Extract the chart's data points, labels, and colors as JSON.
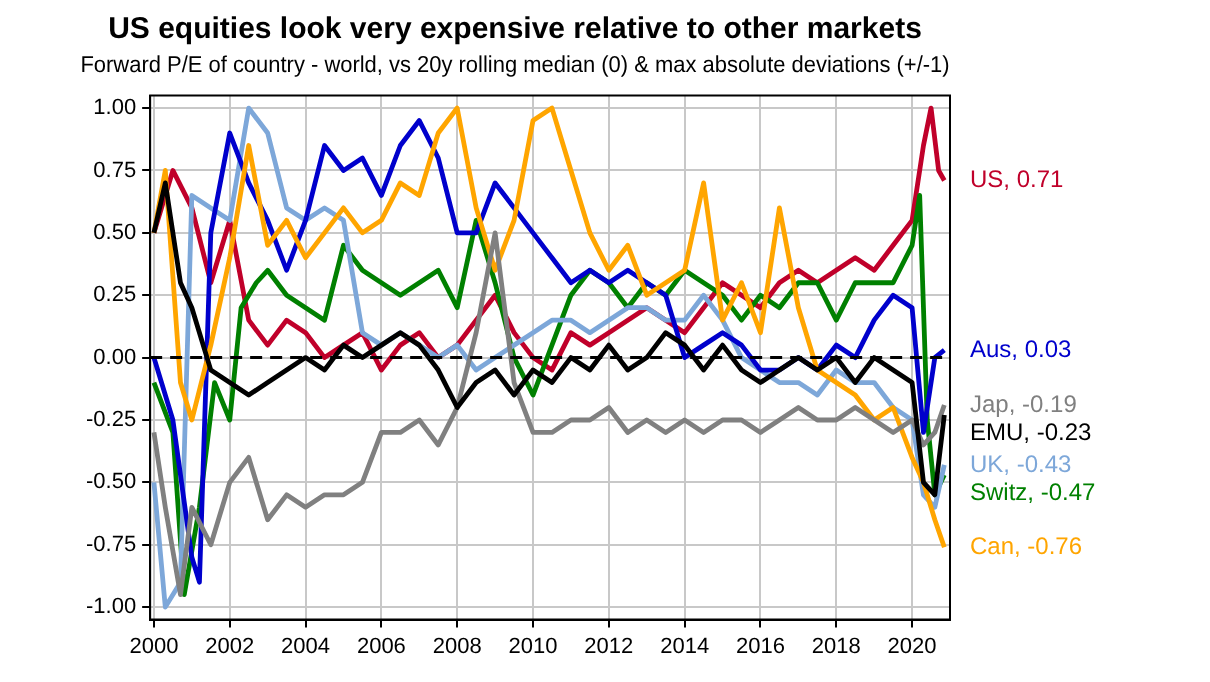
{
  "chart_data": {
    "type": "line",
    "title": "US equities look very expensive relative to other markets",
    "subtitle": "Forward P/E of country - world, vs 20y rolling median (0) & max absolute deviations (+/-1)",
    "xlim": [
      1999.9,
      2021
    ],
    "xticks": [
      2000,
      2002,
      2004,
      2006,
      2008,
      2010,
      2012,
      2014,
      2016,
      2018,
      2020
    ],
    "ylim": [
      -1.05,
      1.05
    ],
    "yticks": [
      {
        "value": -1,
        "label": "-1.00"
      },
      {
        "value": -0.75,
        "label": "-0.75"
      },
      {
        "value": -0.5,
        "label": "-0.50"
      },
      {
        "value": -0.25,
        "label": "-0.25"
      },
      {
        "value": 0,
        "label": "0.00"
      },
      {
        "value": 0.25,
        "label": "0.25"
      },
      {
        "value": 0.5,
        "label": "0.50"
      },
      {
        "value": 0.75,
        "label": "0.75"
      },
      {
        "value": 1,
        "label": "1.00"
      }
    ],
    "grid": true,
    "legend": false,
    "line_style": "solid",
    "marker": "none",
    "ref_lines": [
      {
        "axis": "y",
        "value": 0,
        "label": null,
        "color": "#000000",
        "line_style": "dashed"
      }
    ],
    "series": [
      {
        "name": "EMU, -0.23",
        "color": "#000000",
        "x": [
          2000,
          2000.3,
          2000.7,
          2001,
          2001.5,
          2002,
          2002.5,
          2003,
          2003.5,
          2004,
          2004.5,
          2005,
          2005.5,
          2006,
          2006.5,
          2007,
          2007.5,
          2008,
          2008.5,
          2009,
          2009.5,
          2010,
          2010.5,
          2011,
          2011.5,
          2012,
          2012.5,
          2013,
          2013.5,
          2014,
          2014.5,
          2015,
          2015.5,
          2016,
          2016.5,
          2017,
          2017.5,
          2018,
          2018.5,
          2019,
          2019.5,
          2020,
          2020.3,
          2020.6,
          2020.85
        ],
        "values": [
          0.5,
          0.7,
          0.3,
          0.2,
          -0.05,
          -0.1,
          -0.15,
          -0.1,
          -0.05,
          0.0,
          -0.05,
          0.05,
          0.0,
          0.05,
          0.1,
          0.05,
          -0.05,
          -0.2,
          -0.1,
          -0.05,
          -0.15,
          -0.05,
          -0.1,
          0.0,
          -0.05,
          0.05,
          -0.05,
          0.0,
          0.1,
          0.05,
          -0.05,
          0.05,
          -0.05,
          -0.1,
          -0.05,
          0.0,
          -0.05,
          0.0,
          -0.1,
          0.0,
          -0.05,
          -0.1,
          -0.5,
          -0.55,
          -0.23
        ]
      },
      {
        "name": "Jap, -0.19",
        "color": "#808080",
        "x": [
          2000,
          2000.3,
          2000.7,
          2001,
          2001.5,
          2002,
          2002.5,
          2003,
          2003.5,
          2004,
          2004.5,
          2005,
          2005.5,
          2006,
          2006.5,
          2007,
          2007.5,
          2008,
          2008.5,
          2009,
          2009.5,
          2010,
          2010.5,
          2011,
          2011.5,
          2012,
          2012.5,
          2013,
          2013.5,
          2014,
          2014.5,
          2015,
          2015.5,
          2016,
          2016.5,
          2017,
          2017.5,
          2018,
          2018.5,
          2019,
          2019.5,
          2020,
          2020.3,
          2020.6,
          2020.85
        ],
        "values": [
          -0.3,
          -0.6,
          -0.95,
          -0.6,
          -0.75,
          -0.5,
          -0.4,
          -0.65,
          -0.55,
          -0.6,
          -0.55,
          -0.55,
          -0.5,
          -0.3,
          -0.3,
          -0.25,
          -0.35,
          -0.2,
          0.1,
          0.5,
          -0.1,
          -0.3,
          -0.3,
          -0.25,
          -0.25,
          -0.2,
          -0.3,
          -0.25,
          -0.3,
          -0.25,
          -0.3,
          -0.25,
          -0.25,
          -0.3,
          -0.25,
          -0.2,
          -0.25,
          -0.25,
          -0.2,
          -0.25,
          -0.3,
          -0.25,
          -0.35,
          -0.3,
          -0.19
        ]
      },
      {
        "name": "Can, -0.76",
        "color": "#ffa500",
        "x": [
          2000,
          2000.3,
          2000.7,
          2001,
          2001.5,
          2002,
          2002.5,
          2003,
          2003.5,
          2004,
          2004.5,
          2005,
          2005.5,
          2006,
          2006.5,
          2007,
          2007.5,
          2008,
          2008.5,
          2009,
          2009.5,
          2010,
          2010.5,
          2011,
          2011.5,
          2012,
          2012.5,
          2013,
          2013.5,
          2014,
          2014.5,
          2015,
          2015.5,
          2016,
          2016.5,
          2017,
          2017.5,
          2018,
          2018.5,
          2019,
          2019.5,
          2020,
          2020.3,
          2020.6,
          2020.85
        ],
        "values": [
          0.5,
          0.75,
          -0.1,
          -0.25,
          0.05,
          0.4,
          0.85,
          0.45,
          0.55,
          0.4,
          0.5,
          0.6,
          0.5,
          0.55,
          0.7,
          0.65,
          0.9,
          1.0,
          0.6,
          0.35,
          0.55,
          0.95,
          1.0,
          0.75,
          0.5,
          0.35,
          0.45,
          0.25,
          0.3,
          0.35,
          0.7,
          0.15,
          0.3,
          0.1,
          0.6,
          0.2,
          -0.05,
          -0.1,
          -0.15,
          -0.25,
          -0.2,
          -0.4,
          -0.5,
          -0.65,
          -0.76
        ]
      },
      {
        "name": "Aus, 0.03",
        "color": "#0000cc",
        "x": [
          2000,
          2000.5,
          2001,
          2001.2,
          2001.5,
          2002,
          2002.5,
          2003,
          2003.5,
          2004,
          2004.5,
          2005,
          2005.5,
          2006,
          2006.5,
          2007,
          2007.5,
          2008,
          2008.5,
          2009,
          2009.5,
          2010,
          2010.5,
          2011,
          2011.5,
          2012,
          2012.5,
          2013,
          2013.5,
          2014,
          2014.5,
          2015,
          2015.5,
          2016,
          2016.5,
          2017,
          2017.5,
          2018,
          2018.5,
          2019,
          2019.5,
          2020,
          2020.3,
          2020.6,
          2020.85
        ],
        "values": [
          0.0,
          -0.25,
          -0.8,
          -0.9,
          0.5,
          0.9,
          0.7,
          0.55,
          0.35,
          0.55,
          0.85,
          0.75,
          0.8,
          0.65,
          0.85,
          0.95,
          0.8,
          0.5,
          0.5,
          0.7,
          0.6,
          0.5,
          0.4,
          0.3,
          0.35,
          0.3,
          0.35,
          0.3,
          0.25,
          0.0,
          0.05,
          0.1,
          0.05,
          -0.05,
          -0.05,
          0.0,
          -0.05,
          0.05,
          0.0,
          0.15,
          0.25,
          0.2,
          -0.3,
          0.0,
          0.03
        ]
      },
      {
        "name": "UK, -0.43",
        "color": "#7da7d9",
        "x": [
          2000,
          2000.3,
          2000.7,
          2001,
          2001.5,
          2002,
          2002.5,
          2003,
          2003.5,
          2004,
          2004.5,
          2005,
          2005.5,
          2006,
          2006.5,
          2007,
          2007.5,
          2008,
          2008.5,
          2009,
          2009.5,
          2010,
          2010.5,
          2011,
          2011.5,
          2012,
          2012.5,
          2013,
          2013.5,
          2014,
          2014.5,
          2015,
          2015.5,
          2016,
          2016.5,
          2017,
          2017.5,
          2018,
          2018.5,
          2019,
          2019.5,
          2020,
          2020.3,
          2020.6,
          2020.85
        ],
        "values": [
          -0.5,
          -1.0,
          -0.9,
          0.65,
          0.6,
          0.55,
          1.0,
          0.9,
          0.6,
          0.55,
          0.6,
          0.55,
          0.1,
          0.05,
          0.1,
          0.05,
          0.0,
          0.05,
          -0.05,
          0.0,
          0.05,
          0.1,
          0.15,
          0.15,
          0.1,
          0.15,
          0.2,
          0.2,
          0.15,
          0.15,
          0.25,
          0.15,
          0.0,
          -0.05,
          -0.1,
          -0.1,
          -0.15,
          -0.05,
          -0.1,
          -0.1,
          -0.2,
          -0.25,
          -0.55,
          -0.6,
          -0.43
        ]
      },
      {
        "name": "Switz, -0.47",
        "color": "#008000",
        "x": [
          2000,
          2000.5,
          2000.8,
          2001.2,
          2001.6,
          2002,
          2002.3,
          2002.7,
          2003,
          2003.5,
          2004,
          2004.5,
          2005,
          2005.5,
          2006,
          2006.5,
          2007,
          2007.5,
          2008,
          2008.5,
          2009,
          2009.5,
          2010,
          2010.5,
          2011,
          2011.5,
          2012,
          2012.5,
          2013,
          2013.5,
          2014,
          2014.5,
          2015,
          2015.5,
          2016,
          2016.5,
          2017,
          2017.5,
          2018,
          2018.5,
          2019,
          2019.5,
          2020,
          2020.2,
          2020.4,
          2020.6,
          2020.85
        ],
        "values": [
          -0.1,
          -0.3,
          -0.95,
          -0.6,
          -0.1,
          -0.25,
          0.2,
          0.3,
          0.35,
          0.25,
          0.2,
          0.15,
          0.45,
          0.35,
          0.3,
          0.25,
          0.3,
          0.35,
          0.2,
          0.55,
          0.3,
          0.0,
          -0.15,
          0.05,
          0.25,
          0.35,
          0.3,
          0.2,
          0.3,
          0.25,
          0.35,
          0.3,
          0.25,
          0.15,
          0.25,
          0.2,
          0.3,
          0.3,
          0.15,
          0.3,
          0.3,
          0.3,
          0.45,
          0.65,
          -0.25,
          -0.55,
          -0.47
        ]
      },
      {
        "name": "US, 0.71",
        "color": "#c0002a",
        "x": [
          2000,
          2000.5,
          2001,
          2001.5,
          2002,
          2002.5,
          2003,
          2003.5,
          2004,
          2004.5,
          2005,
          2005.5,
          2006,
          2006.5,
          2007,
          2007.5,
          2008,
          2008.5,
          2009,
          2009.5,
          2010,
          2010.5,
          2011,
          2011.5,
          2012,
          2012.5,
          2013,
          2013.5,
          2014,
          2014.5,
          2015,
          2015.5,
          2016,
          2016.5,
          2017,
          2017.5,
          2018,
          2018.5,
          2019,
          2019.5,
          2020,
          2020.3,
          2020.5,
          2020.7,
          2020.85
        ],
        "values": [
          0.5,
          0.75,
          0.6,
          0.3,
          0.55,
          0.15,
          0.05,
          0.15,
          0.1,
          0.0,
          0.05,
          0.1,
          -0.05,
          0.05,
          0.1,
          0.0,
          0.05,
          0.15,
          0.25,
          0.1,
          0.0,
          -0.05,
          0.1,
          0.05,
          0.1,
          0.15,
          0.2,
          0.15,
          0.1,
          0.2,
          0.3,
          0.25,
          0.2,
          0.3,
          0.35,
          0.3,
          0.35,
          0.4,
          0.35,
          0.45,
          0.55,
          0.85,
          1.0,
          0.75,
          0.71
        ]
      }
    ]
  }
}
